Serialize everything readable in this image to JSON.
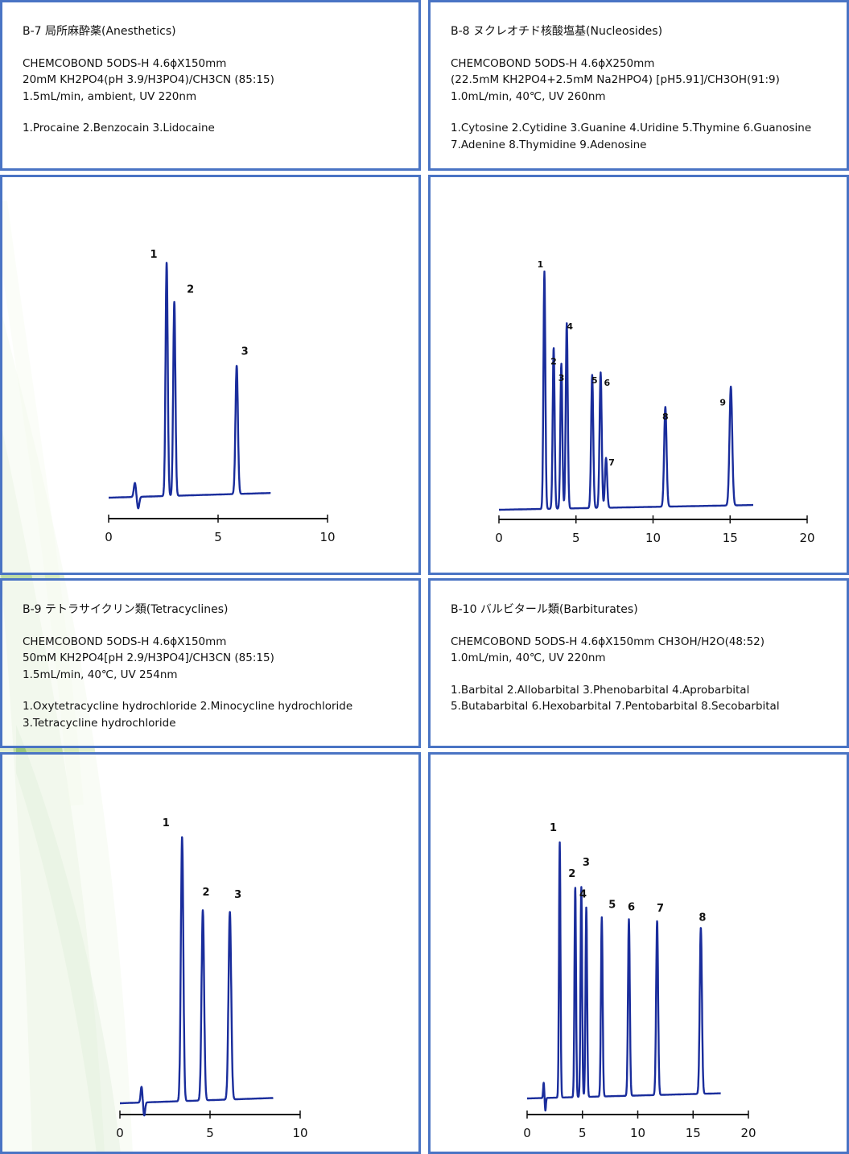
{
  "theme": {
    "border_color": "#4a74c4",
    "trace_color": "#1a2d9c",
    "axis_color": "#111111",
    "decoration_green": "#7dbb4c"
  },
  "panels": [
    {
      "id": "b7",
      "header": "B-7 局所麻酔薬(Anesthetics)",
      "conditions": [
        "CHEMCOBOND 5ODS-H 4.6ϕX150mm",
        "20mM KH2PO4(pH 3.9/H3PO4)/CH3CN (85:15)",
        "1.5mL/min, ambient, UV 220nm"
      ],
      "peaks_text": [
        "1.Procaine 2.Benzocain 3.Lidocaine"
      ]
    },
    {
      "id": "b8",
      "header": "B-8 ヌクレオチド核酸塩基(Nucleosides)",
      "conditions": [
        "CHEMCOBOND 5ODS-H 4.6ϕX250mm",
        "(22.5mM KH2PO4+2.5mM Na2HPO4) [pH5.91]/CH3OH(91:9)",
        "1.0mL/min, 40℃, UV 260nm"
      ],
      "peaks_text": [
        "1.Cytosine 2.Cytidine 3.Guanine 4.Uridine 5.Thymine 6.Guanosine",
        "7.Adenine 8.Thymidine 9.Adenosine"
      ]
    },
    {
      "id": "b9",
      "header": "B-9 テトラサイクリン類(Tetracyclines)",
      "conditions": [
        "CHEMCOBOND 5ODS-H 4.6ϕX150mm",
        "50mM KH2PO4[pH 2.9/H3PO4]/CH3CN (85:15)",
        "1.5mL/min, 40℃, UV 254nm"
      ],
      "peaks_text": [
        "1.Oxytetracycline hydrochloride 2.Minocycline hydrochloride",
        "3.Tetracycline hydrochloride"
      ]
    },
    {
      "id": "b10",
      "header": "B-10 バルビタール類(Barbiturates)",
      "conditions": [
        "CHEMCOBOND 5ODS-H 4.6ϕX150mm CH3OH/H2O(48:52)",
        "1.0mL/min, 40℃, UV 220nm"
      ],
      "peaks_text": [
        "1.Barbital 2.Allobarbital 3.Phenobarbital 4.Aprobarbital",
        "5.Butabarbital 6.Hexobarbital 7.Pentobarbital 8.Secobarbital"
      ]
    }
  ],
  "chart_data": [
    {
      "type": "line",
      "panel": "b7",
      "xlim": [
        0,
        10
      ],
      "xticks": [
        "0",
        "5",
        "10"
      ],
      "trace_end": 7.4,
      "disturbance": 1.2,
      "baseline": 0.02,
      "peaks": [
        {
          "label": "1",
          "rt": 2.65,
          "height": 1.0
        },
        {
          "label": "2",
          "rt": 3.0,
          "height": 0.83
        },
        {
          "label": "3",
          "rt": 5.85,
          "height": 0.55
        }
      ]
    },
    {
      "type": "line",
      "panel": "b8",
      "xlim": [
        0,
        20
      ],
      "xticks": [
        "0",
        "5",
        "10",
        "15",
        "20"
      ],
      "trace_end": 16.5,
      "baseline": 0.02,
      "peaks": [
        {
          "label": "1",
          "rt": 2.95,
          "height": 1.0
        },
        {
          "label": "2",
          "rt": 3.55,
          "height": 0.68
        },
        {
          "label": "3",
          "rt": 4.05,
          "height": 0.61
        },
        {
          "label": "4",
          "rt": 4.4,
          "height": 0.78
        },
        {
          "label": "5",
          "rt": 6.05,
          "height": 0.56
        },
        {
          "label": "6",
          "rt": 6.6,
          "height": 0.57
        },
        {
          "label": "7",
          "rt": 6.95,
          "height": 0.21
        },
        {
          "label": "8",
          "rt": 10.8,
          "height": 0.42
        },
        {
          "label": "9",
          "rt": 15.05,
          "height": 0.5
        }
      ]
    },
    {
      "type": "line",
      "panel": "b9",
      "xlim": [
        0,
        10
      ],
      "xticks": [
        "0",
        "5",
        "10"
      ],
      "trace_end": 8.5,
      "disturbance": 1.2,
      "baseline": 0.02,
      "peaks": [
        {
          "label": "1",
          "rt": 3.45,
          "height": 1.0
        },
        {
          "label": "2",
          "rt": 4.6,
          "height": 0.72
        },
        {
          "label": "3",
          "rt": 6.1,
          "height": 0.71
        }
      ]
    },
    {
      "type": "line",
      "panel": "b10",
      "xlim": [
        0,
        20
      ],
      "xticks": [
        "0",
        "5",
        "10",
        "15",
        "20"
      ],
      "trace_end": 17.5,
      "disturbance": 1.5,
      "baseline": 0.02,
      "peaks": [
        {
          "label": "1",
          "rt": 2.95,
          "height": 1.0
        },
        {
          "label": "2",
          "rt": 4.35,
          "height": 0.82
        },
        {
          "label": "3",
          "rt": 4.9,
          "height": 0.82
        },
        {
          "label": "4",
          "rt": 5.35,
          "height": 0.74
        },
        {
          "label": "5",
          "rt": 6.75,
          "height": 0.7
        },
        {
          "label": "6",
          "rt": 9.2,
          "height": 0.69
        },
        {
          "label": "7",
          "rt": 11.75,
          "height": 0.68
        },
        {
          "label": "8",
          "rt": 15.7,
          "height": 0.65
        }
      ]
    }
  ]
}
